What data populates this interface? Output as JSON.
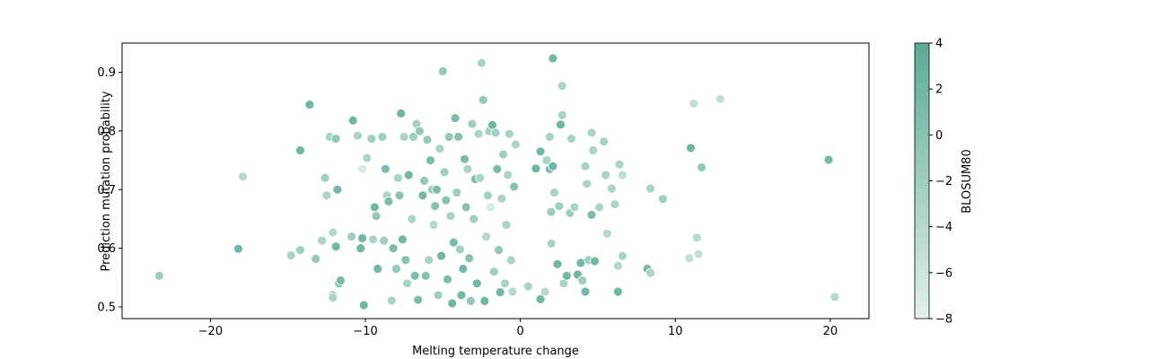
{
  "chart_data": {
    "type": "scatter",
    "title": "",
    "xlabel": "Melting temperature change",
    "ylabel": "Prediction mutation probability",
    "xlim": [
      -25.7,
      22.5
    ],
    "ylim": [
      0.48,
      0.95
    ],
    "xticks": [
      -20,
      -10,
      0,
      10,
      20
    ],
    "yticks": [
      0.5,
      0.6,
      0.7,
      0.8,
      0.9
    ],
    "grid": false,
    "colorbar": {
      "label": "BLOSUM80",
      "min": -8,
      "max": 4,
      "ticks": [
        -8,
        -6,
        -4,
        -2,
        0,
        2,
        4
      ],
      "color_low": "#e3f0ec",
      "color_high": "#5aab97"
    },
    "marker_edge_color": "#ffffff",
    "points": [
      {
        "x": -23.3,
        "y": 0.553,
        "c": -2
      },
      {
        "x": -18.2,
        "y": 0.599,
        "c": 2
      },
      {
        "x": -17.9,
        "y": 0.722,
        "c": -4
      },
      {
        "x": -14.8,
        "y": 0.588,
        "c": -3
      },
      {
        "x": -14.2,
        "y": 0.767,
        "c": 2
      },
      {
        "x": -14.2,
        "y": 0.597,
        "c": -2
      },
      {
        "x": -13.6,
        "y": 0.845,
        "c": 2
      },
      {
        "x": -13.2,
        "y": 0.582,
        "c": -1
      },
      {
        "x": -12.8,
        "y": 0.613,
        "c": -3
      },
      {
        "x": -12.6,
        "y": 0.72,
        "c": -2
      },
      {
        "x": -12.5,
        "y": 0.69,
        "c": -3
      },
      {
        "x": -12.3,
        "y": 0.79,
        "c": -3
      },
      {
        "x": -12.1,
        "y": 0.627,
        "c": -4
      },
      {
        "x": -12.1,
        "y": 0.52,
        "c": -2
      },
      {
        "x": -11.9,
        "y": 0.603,
        "c": 2
      },
      {
        "x": -11.8,
        "y": 0.7,
        "c": 2
      },
      {
        "x": -11.7,
        "y": 0.54,
        "c": 0
      },
      {
        "x": -11.9,
        "y": 0.787,
        "c": -1
      },
      {
        "x": -11.6,
        "y": 0.545,
        "c": 1
      },
      {
        "x": -12.1,
        "y": 0.516,
        "c": -3
      },
      {
        "x": -10.9,
        "y": 0.62,
        "c": -2
      },
      {
        "x": -10.8,
        "y": 0.818,
        "c": 2
      },
      {
        "x": -10.5,
        "y": 0.792,
        "c": -3
      },
      {
        "x": -10.3,
        "y": 0.6,
        "c": 2
      },
      {
        "x": -10.2,
        "y": 0.617,
        "c": 2
      },
      {
        "x": -10.1,
        "y": 0.503,
        "c": 2
      },
      {
        "x": -10.2,
        "y": 0.735,
        "c": -7
      },
      {
        "x": -9.9,
        "y": 0.754,
        "c": -3
      },
      {
        "x": -9.6,
        "y": 0.787,
        "c": -2
      },
      {
        "x": -9.5,
        "y": 0.615,
        "c": -3
      },
      {
        "x": -9.4,
        "y": 0.67,
        "c": 2
      },
      {
        "x": -9.3,
        "y": 0.655,
        "c": -1
      },
      {
        "x": -9.2,
        "y": 0.565,
        "c": 2
      },
      {
        "x": -8.9,
        "y": 0.79,
        "c": -2
      },
      {
        "x": -8.8,
        "y": 0.613,
        "c": -2
      },
      {
        "x": -8.7,
        "y": 0.735,
        "c": 1
      },
      {
        "x": -8.6,
        "y": 0.69,
        "c": -3
      },
      {
        "x": -8.5,
        "y": 0.68,
        "c": 1
      },
      {
        "x": -8.3,
        "y": 0.511,
        "c": -3
      },
      {
        "x": -8.2,
        "y": 0.6,
        "c": 1
      },
      {
        "x": -8.0,
        "y": 0.565,
        "c": -1
      },
      {
        "x": -7.9,
        "y": 0.72,
        "c": -3
      },
      {
        "x": -7.8,
        "y": 0.69,
        "c": 0
      },
      {
        "x": -7.7,
        "y": 0.83,
        "c": 2
      },
      {
        "x": -7.6,
        "y": 0.615,
        "c": 2
      },
      {
        "x": -7.5,
        "y": 0.79,
        "c": -3
      },
      {
        "x": -7.4,
        "y": 0.58,
        "c": 0
      },
      {
        "x": -7.3,
        "y": 0.54,
        "c": -3
      },
      {
        "x": -7.2,
        "y": 0.725,
        "c": 2
      },
      {
        "x": -7.0,
        "y": 0.65,
        "c": -3
      },
      {
        "x": -6.9,
        "y": 0.79,
        "c": -2
      },
      {
        "x": -6.8,
        "y": 0.553,
        "c": 1
      },
      {
        "x": -6.7,
        "y": 0.812,
        "c": -2
      },
      {
        "x": -6.6,
        "y": 0.512,
        "c": 1
      },
      {
        "x": -6.5,
        "y": 0.8,
        "c": -1
      },
      {
        "x": -6.3,
        "y": 0.69,
        "c": 2
      },
      {
        "x": -6.2,
        "y": 0.715,
        "c": -1
      },
      {
        "x": -6.1,
        "y": 0.553,
        "c": 0
      },
      {
        "x": -6.0,
        "y": 0.785,
        "c": -1
      },
      {
        "x": -5.9,
        "y": 0.58,
        "c": -3
      },
      {
        "x": -5.8,
        "y": 0.75,
        "c": 1
      },
      {
        "x": -5.7,
        "y": 0.7,
        "c": -2
      },
      {
        "x": -5.6,
        "y": 0.64,
        "c": -4
      },
      {
        "x": -5.5,
        "y": 0.672,
        "c": 0
      },
      {
        "x": -5.4,
        "y": 0.7,
        "c": 1
      },
      {
        "x": -5.3,
        "y": 0.52,
        "c": -2
      },
      {
        "x": -5.2,
        "y": 0.77,
        "c": -3
      },
      {
        "x": -5.1,
        "y": 0.587,
        "c": 2
      },
      {
        "x": -5.0,
        "y": 0.902,
        "c": -1
      },
      {
        "x": -4.9,
        "y": 0.73,
        "c": -2
      },
      {
        "x": -4.8,
        "y": 0.682,
        "c": 0
      },
      {
        "x": -4.7,
        "y": 0.547,
        "c": 1
      },
      {
        "x": -4.6,
        "y": 0.79,
        "c": -1
      },
      {
        "x": -4.5,
        "y": 0.655,
        "c": -3
      },
      {
        "x": -4.4,
        "y": 0.506,
        "c": 2
      },
      {
        "x": -4.3,
        "y": 0.61,
        "c": 1
      },
      {
        "x": -4.2,
        "y": 0.822,
        "c": 1
      },
      {
        "x": -4.1,
        "y": 0.695,
        "c": -2
      },
      {
        "x": -4.0,
        "y": 0.79,
        "c": 0
      },
      {
        "x": -3.9,
        "y": 0.598,
        "c": -2
      },
      {
        "x": -3.8,
        "y": 0.52,
        "c": 2
      },
      {
        "x": -3.7,
        "y": 0.565,
        "c": 2
      },
      {
        "x": -3.6,
        "y": 0.752,
        "c": 1
      },
      {
        "x": -3.5,
        "y": 0.67,
        "c": 0
      },
      {
        "x": -3.4,
        "y": 0.735,
        "c": -3
      },
      {
        "x": -3.3,
        "y": 0.583,
        "c": 0
      },
      {
        "x": -3.2,
        "y": 0.51,
        "c": -1
      },
      {
        "x": -3.1,
        "y": 0.812,
        "c": -2
      },
      {
        "x": -3.0,
        "y": 0.65,
        "c": -2
      },
      {
        "x": -2.9,
        "y": 0.718,
        "c": 1
      },
      {
        "x": -2.8,
        "y": 0.54,
        "c": 2
      },
      {
        "x": -2.7,
        "y": 0.795,
        "c": -3
      },
      {
        "x": -2.6,
        "y": 0.72,
        "c": -3
      },
      {
        "x": -2.5,
        "y": 0.916,
        "c": -3
      },
      {
        "x": -2.4,
        "y": 0.853,
        "c": -1
      },
      {
        "x": -2.3,
        "y": 0.51,
        "c": 2
      },
      {
        "x": -2.2,
        "y": 0.62,
        "c": -4
      },
      {
        "x": -2.1,
        "y": 0.69,
        "c": -2
      },
      {
        "x": -2.0,
        "y": 0.8,
        "c": -2
      },
      {
        "x": -1.9,
        "y": 0.67,
        "c": -7
      },
      {
        "x": -1.8,
        "y": 0.81,
        "c": 2
      },
      {
        "x": -1.7,
        "y": 0.56,
        "c": -2
      },
      {
        "x": -1.6,
        "y": 0.797,
        "c": -2
      },
      {
        "x": -1.5,
        "y": 0.735,
        "c": 1
      },
      {
        "x": -1.4,
        "y": 0.597,
        "c": -1
      },
      {
        "x": -1.3,
        "y": 0.525,
        "c": 2
      },
      {
        "x": -1.2,
        "y": 0.685,
        "c": -3
      },
      {
        "x": -1.1,
        "y": 0.76,
        "c": -2
      },
      {
        "x": -1.0,
        "y": 0.54,
        "c": -3
      },
      {
        "x": -0.9,
        "y": 0.64,
        "c": -3
      },
      {
        "x": -0.8,
        "y": 0.725,
        "c": -3
      },
      {
        "x": -0.7,
        "y": 0.795,
        "c": -3
      },
      {
        "x": -0.6,
        "y": 0.58,
        "c": -3
      },
      {
        "x": -0.5,
        "y": 0.526,
        "c": -4
      },
      {
        "x": -0.4,
        "y": 0.705,
        "c": 0
      },
      {
        "x": -0.3,
        "y": 0.777,
        "c": -3
      },
      {
        "x": 0.5,
        "y": 0.535,
        "c": -3
      },
      {
        "x": 1.0,
        "y": 0.736,
        "c": 2
      },
      {
        "x": 1.3,
        "y": 0.765,
        "c": 2
      },
      {
        "x": 1.3,
        "y": 0.513,
        "c": 2
      },
      {
        "x": 1.6,
        "y": 0.526,
        "c": -4
      },
      {
        "x": 1.7,
        "y": 0.75,
        "c": -3
      },
      {
        "x": 1.9,
        "y": 0.735,
        "c": 1
      },
      {
        "x": 1.9,
        "y": 0.79,
        "c": -3
      },
      {
        "x": 2.0,
        "y": 0.662,
        "c": -2
      },
      {
        "x": 2.0,
        "y": 0.608,
        "c": -3
      },
      {
        "x": 2.1,
        "y": 0.74,
        "c": 2
      },
      {
        "x": 2.1,
        "y": 0.924,
        "c": 2
      },
      {
        "x": 2.2,
        "y": 0.695,
        "c": -3
      },
      {
        "x": 2.4,
        "y": 0.573,
        "c": 2
      },
      {
        "x": 2.5,
        "y": 0.672,
        "c": -2
      },
      {
        "x": 2.6,
        "y": 0.811,
        "c": 2
      },
      {
        "x": 2.7,
        "y": 0.877,
        "c": -3
      },
      {
        "x": 2.7,
        "y": 0.827,
        "c": -3
      },
      {
        "x": 2.8,
        "y": 0.54,
        "c": -3
      },
      {
        "x": 3.0,
        "y": 0.553,
        "c": 2
      },
      {
        "x": 3.2,
        "y": 0.66,
        "c": -2
      },
      {
        "x": 3.3,
        "y": 0.787,
        "c": -3
      },
      {
        "x": 3.5,
        "y": 0.67,
        "c": -3
      },
      {
        "x": 3.7,
        "y": 0.555,
        "c": 2
      },
      {
        "x": 3.9,
        "y": 0.575,
        "c": 2
      },
      {
        "x": 4.0,
        "y": 0.545,
        "c": -2
      },
      {
        "x": 4.2,
        "y": 0.526,
        "c": 2
      },
      {
        "x": 4.2,
        "y": 0.74,
        "c": -3
      },
      {
        "x": 4.3,
        "y": 0.71,
        "c": -3
      },
      {
        "x": 4.4,
        "y": 0.58,
        "c": -2
      },
      {
        "x": 4.6,
        "y": 0.797,
        "c": -3
      },
      {
        "x": 4.6,
        "y": 0.657,
        "c": 1
      },
      {
        "x": 4.7,
        "y": 0.767,
        "c": -3
      },
      {
        "x": 4.8,
        "y": 0.578,
        "c": 2
      },
      {
        "x": 5.1,
        "y": 0.67,
        "c": -3
      },
      {
        "x": 5.4,
        "y": 0.782,
        "c": -3
      },
      {
        "x": 5.5,
        "y": 0.725,
        "c": -3
      },
      {
        "x": 5.6,
        "y": 0.625,
        "c": -4
      },
      {
        "x": 5.9,
        "y": 0.702,
        "c": -3
      },
      {
        "x": 6.1,
        "y": 0.675,
        "c": -3
      },
      {
        "x": 6.3,
        "y": 0.57,
        "c": -4
      },
      {
        "x": 6.3,
        "y": 0.526,
        "c": 2
      },
      {
        "x": 6.4,
        "y": 0.743,
        "c": -3
      },
      {
        "x": 6.6,
        "y": 0.725,
        "c": -5
      },
      {
        "x": 6.6,
        "y": 0.587,
        "c": -3
      },
      {
        "x": 8.2,
        "y": 0.565,
        "c": 2
      },
      {
        "x": 8.4,
        "y": 0.702,
        "c": -3
      },
      {
        "x": 8.4,
        "y": 0.558,
        "c": -3
      },
      {
        "x": 9.2,
        "y": 0.684,
        "c": -2
      },
      {
        "x": 10.9,
        "y": 0.583,
        "c": -5
      },
      {
        "x": 11.0,
        "y": 0.771,
        "c": 2
      },
      {
        "x": 11.2,
        "y": 0.847,
        "c": -5
      },
      {
        "x": 11.4,
        "y": 0.618,
        "c": -4
      },
      {
        "x": 11.5,
        "y": 0.59,
        "c": -5
      },
      {
        "x": 11.7,
        "y": 0.738,
        "c": -1
      },
      {
        "x": 12.9,
        "y": 0.855,
        "c": -5
      },
      {
        "x": 19.9,
        "y": 0.751,
        "c": 2
      },
      {
        "x": 20.3,
        "y": 0.517,
        "c": -4
      }
    ]
  }
}
